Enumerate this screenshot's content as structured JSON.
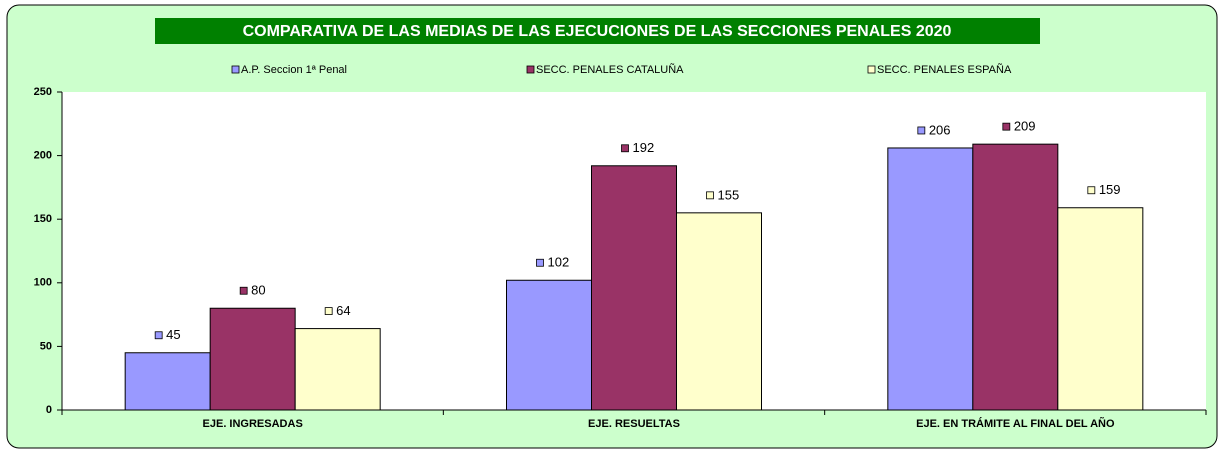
{
  "chart_data": {
    "type": "bar",
    "title": "COMPARATIVA DE LAS MEDIAS DE LAS EJECUCIONES  DE LAS SECCIONES PENALES  2020",
    "categories": [
      "EJE. INGRESADAS",
      "EJE. RESUELTAS",
      "EJE. EN TRÁMITE AL FINAL DEL AÑO"
    ],
    "series": [
      {
        "name": "A.P. Seccion 1ª Penal",
        "color": "#9999ff",
        "values": [
          45,
          102,
          206
        ]
      },
      {
        "name": "SECC. PENALES CATALUÑA",
        "color": "#993366",
        "values": [
          80,
          192,
          209
        ]
      },
      {
        "name": "SECC. PENALES ESPAÑA",
        "color": "#ffffcc",
        "values": [
          64,
          155,
          159
        ]
      }
    ],
    "ylim": [
      0,
      250
    ],
    "yticks": [
      0,
      50,
      100,
      150,
      200,
      250
    ],
    "grid": false,
    "legend": "top"
  }
}
